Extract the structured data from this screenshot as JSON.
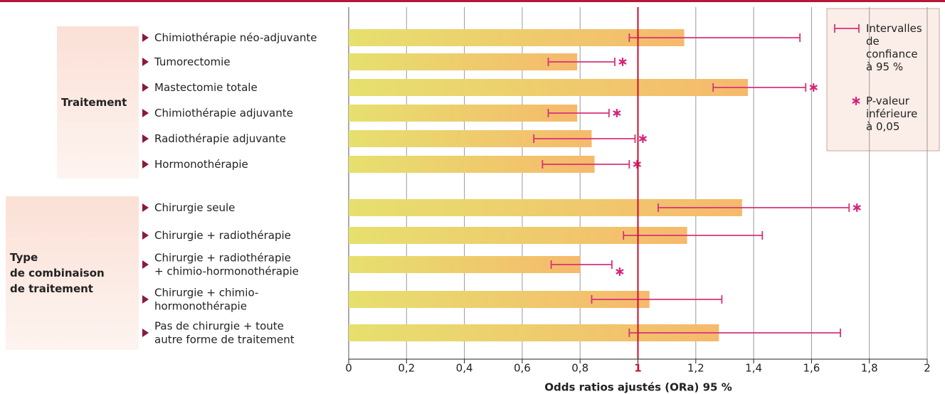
{
  "chart_data": {
    "type": "bar",
    "orientation": "horizontal",
    "xlabel": "Odds ratios ajustés (ORa) 95 %",
    "xlim": [
      0,
      2
    ],
    "xticks": [
      0,
      {
        "value": 0.2,
        "label": "0,2"
      },
      {
        "value": 0.4,
        "label": "0,4"
      },
      {
        "value": 0.6,
        "label": "0,6"
      },
      {
        "value": 0.8,
        "label": "0,8"
      },
      1,
      {
        "value": 1.2,
        "label": "1,2"
      },
      {
        "value": 1.4,
        "label": "1,4"
      },
      {
        "value": 1.6,
        "label": "1,6"
      },
      {
        "value": 1.8,
        "label": "1,8"
      },
      2
    ],
    "grid": true,
    "reference_line": 1,
    "reference_color": "#c8102e",
    "bar_colors": [
      "#e6e06e",
      "#f6b96c"
    ],
    "error_color": "#d6337a",
    "significance_color": "#d6237a",
    "legend": {
      "confidence_interval": "Intervalles\nde\nconfiance\nà 95 %",
      "significant": "P-valeur\ninférieure\nà 0,05"
    },
    "groups": [
      {
        "label": "Traitement",
        "categories": [
          "Chimiothérapie néo-adjuvante",
          "Tumorectomie",
          "Mastectomie totale",
          "Chimiothérapie adjuvante",
          "Radiothérapie adjuvante",
          "Hormonothérapie"
        ],
        "values": [
          1.16,
          0.79,
          1.38,
          0.79,
          0.84,
          0.85
        ],
        "ci_low": [
          0.97,
          0.69,
          1.26,
          0.69,
          0.64,
          0.67
        ],
        "ci_high": [
          1.56,
          0.92,
          1.58,
          0.9,
          0.99,
          0.97
        ],
        "significant": [
          false,
          true,
          true,
          true,
          true,
          true
        ]
      },
      {
        "label": "Type\nde combinaison\nde traitement",
        "categories": [
          "Chirurgie seule",
          "Chirurgie + radiothérapie",
          "Chirurgie + radiothérapie\n+ chimio-hormonothérapie",
          "Chirurgie + chimio-\nhormonothérapie",
          "Pas de chirurgie + toute\nautre forme de traitement"
        ],
        "values": [
          1.36,
          1.17,
          0.8,
          1.04,
          1.28
        ],
        "ci_low": [
          1.07,
          0.95,
          0.7,
          0.84,
          0.97
        ],
        "ci_high": [
          1.73,
          1.43,
          0.91,
          1.29,
          1.7
        ],
        "significant": [
          true,
          false,
          true,
          false,
          false
        ]
      }
    ]
  }
}
